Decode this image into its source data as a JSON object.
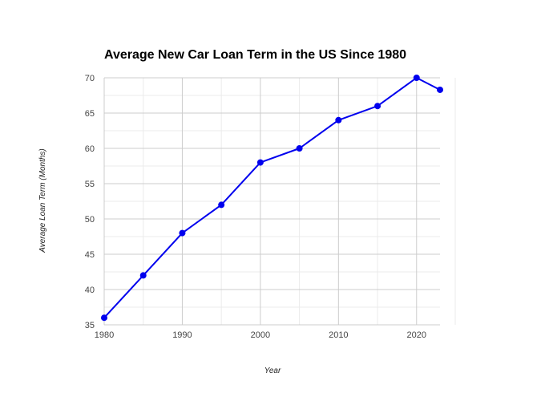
{
  "chart_data": {
    "type": "line",
    "title": "Average New Car Loan Term in the US Since 1980",
    "xlabel": "Year",
    "ylabel": "Average Loan Term (Months)",
    "xlim": [
      1980,
      2023
    ],
    "ylim": [
      35,
      70
    ],
    "x_ticks": [
      1980,
      1990,
      2000,
      2010,
      2020
    ],
    "y_ticks": [
      35,
      40,
      45,
      50,
      55,
      60,
      65,
      70
    ],
    "x_minor_ticks": [
      1985,
      1995,
      2005,
      2015
    ],
    "y_minor_ticks": [
      37.5,
      42.5,
      47.5,
      52.5,
      57.5,
      62.5,
      67.5
    ],
    "grid": true,
    "legend": "none",
    "series": [
      {
        "color": "#0000ee",
        "x": [
          1980,
          1985,
          1990,
          1995,
          2000,
          2005,
          2010,
          2015,
          2020,
          2023
        ],
        "y": [
          36,
          42,
          48,
          52,
          58,
          60,
          64,
          66,
          70,
          68.3
        ]
      }
    ]
  }
}
